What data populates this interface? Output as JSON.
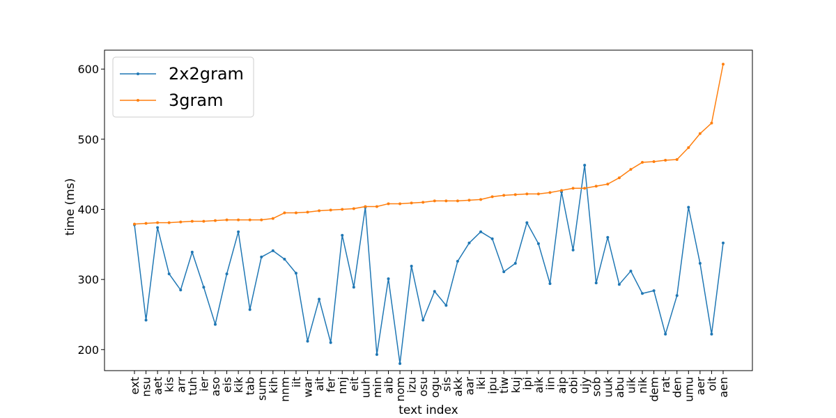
{
  "chart_data": {
    "type": "line",
    "xlabel": "text index",
    "ylabel": "time (ms)",
    "ylim": [
      170,
      627
    ],
    "yticks": [
      200,
      300,
      400,
      500,
      600
    ],
    "legend_position": "top-left",
    "categories": [
      "ext",
      "nsu",
      "aet",
      "kis",
      "arr",
      "tuh",
      "ier",
      "aso",
      "eis",
      "kik",
      "tab",
      "sum",
      "kih",
      "nnm",
      "iit",
      "war",
      "ait",
      "fer",
      "nnj",
      "eit",
      "uuh",
      "min",
      "aib",
      "nom",
      "izu",
      "osu",
      "ogu",
      "sis",
      "akk",
      "aar",
      "iki",
      "ipu",
      "tiw",
      "kuj",
      "ipi",
      "aik",
      "iin",
      "aip",
      "obi",
      "ujy",
      "sob",
      "uuk",
      "abu",
      "uik",
      "nik",
      "dem",
      "rat",
      "den",
      "umu",
      "aer",
      "oit",
      "aen"
    ],
    "series": [
      {
        "name": "2x2gram",
        "color": "#1f77b4",
        "values": [
          378,
          242,
          374,
          308,
          285,
          339,
          289,
          236,
          308,
          368,
          257,
          332,
          341,
          329,
          309,
          212,
          272,
          210,
          363,
          289,
          403,
          193,
          301,
          180,
          319,
          242,
          283,
          263,
          326,
          352,
          368,
          358,
          311,
          323,
          381,
          351,
          294,
          425,
          342,
          463,
          295,
          360,
          293,
          312,
          280,
          284,
          222,
          277,
          403,
          323,
          222,
          352
        ]
      },
      {
        "name": "3gram",
        "color": "#ff7f0e",
        "values": [
          379,
          380,
          381,
          381,
          382,
          383,
          383,
          384,
          385,
          385,
          385,
          385,
          387,
          395,
          395,
          396,
          398,
          399,
          400,
          401,
          404,
          404,
          408,
          408,
          409,
          410,
          412,
          412,
          412,
          413,
          414,
          418,
          420,
          421,
          422,
          422,
          424,
          427,
          430,
          430,
          433,
          436,
          445,
          457,
          467,
          468,
          470,
          471,
          488,
          508,
          523,
          607
        ]
      }
    ]
  }
}
